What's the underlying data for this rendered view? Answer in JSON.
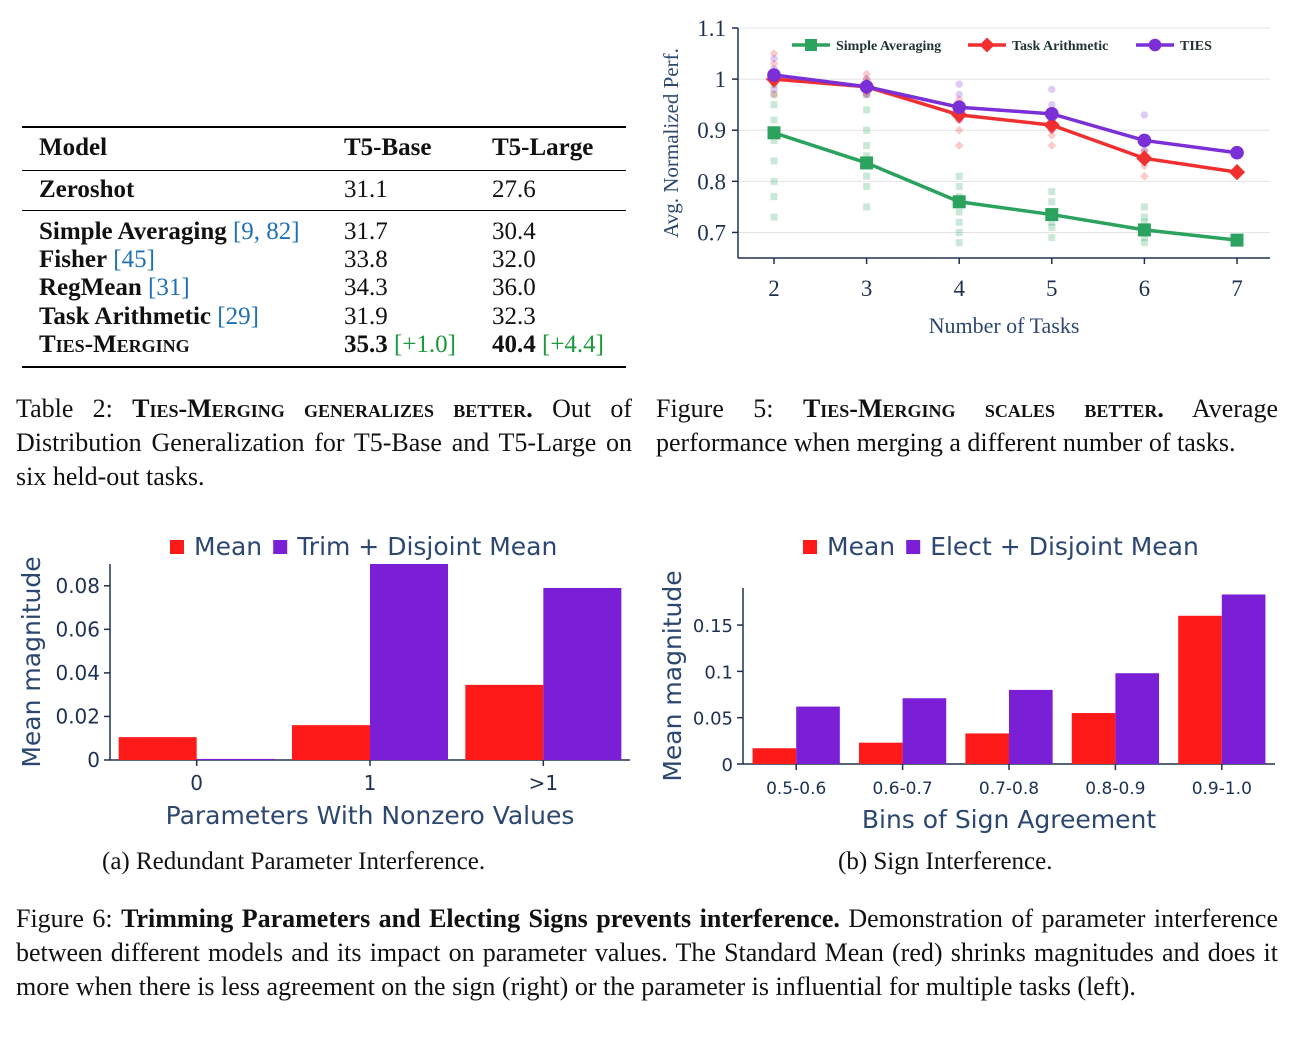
{
  "table": {
    "headers": [
      "Model",
      "T5-Base",
      "T5-Large"
    ],
    "rows": [
      {
        "model": "Zeroshot",
        "cite": "",
        "base": "31.1",
        "large": "27.6",
        "group": 1
      },
      {
        "model": "Simple Averaging",
        "cite": "[9, 82]",
        "base": "31.7",
        "large": "30.4",
        "group": 2
      },
      {
        "model": "Fisher",
        "cite": "[45]",
        "base": "33.8",
        "large": "32.0",
        "group": 2
      },
      {
        "model": "RegMean",
        "cite": "[31]",
        "base": "34.3",
        "large": "36.0",
        "group": 2
      },
      {
        "model": "Task Arithmetic",
        "cite": "[29]",
        "base": "31.9",
        "large": "32.3",
        "group": 2
      },
      {
        "model": "Ties-Merging",
        "cite": "",
        "base": "35.3",
        "base_gain": "[+1.0]",
        "large": "40.4",
        "large_gain": "[+4.4]",
        "group": 2,
        "smallcaps": true
      }
    ],
    "caption_label": "Table 2:",
    "caption_bold": "Ties-Merging generalizes better.",
    "caption_text": "Out of Distribution Generalization for T5-Base and T5-Large on six held-out tasks."
  },
  "fig5": {
    "caption_label": "Figure 5:",
    "caption_bold": "Ties-Merging scales better.",
    "caption_text": "Average performance when merging a different number of tasks."
  },
  "fig6": {
    "caption_label": "Figure 6:",
    "caption_bold": "Trimming Parameters and Electing Signs prevents interference.",
    "caption_text": "Demonstration of parameter interference between different models and its impact on parameter values. The Standard Mean (red) shrinks magnitudes and does it more when there is less agreement on the sign (right) or the parameter is influential for multiple tasks (left).",
    "sub_a": "(a)  Redundant Parameter Interference.",
    "sub_b": "(b)  Sign Interference."
  },
  "chart_data": [
    {
      "type": "line",
      "xlabel": "Number of Tasks",
      "ylabel": "Avg. Normalized Perf.",
      "x": [
        2,
        3,
        4,
        5,
        6,
        7
      ],
      "xticks": [
        "2",
        "3",
        "4",
        "5",
        "6",
        "7"
      ],
      "yticks": [
        "0.7",
        "0.8",
        "0.9",
        "1",
        "1.1"
      ],
      "ylim": [
        0.65,
        1.1
      ],
      "grid": true,
      "legend": "top",
      "series": [
        {
          "name": "Simple Averaging",
          "values": [
            0.895,
            0.836,
            0.76,
            0.735,
            0.705,
            0.685
          ],
          "color": "#2ca25f",
          "marker": "square",
          "scatter": [
            [
              0.73,
              0.77,
              0.8,
              0.84,
              0.88,
              0.92,
              0.95,
              0.97,
              0.99
            ],
            [
              0.75,
              0.79,
              0.81,
              0.85,
              0.87,
              0.9,
              0.94,
              0.97
            ],
            [
              0.68,
              0.7,
              0.72,
              0.74,
              0.77,
              0.79,
              0.81
            ],
            [
              0.69,
              0.71,
              0.72,
              0.74,
              0.76,
              0.78
            ],
            [
              0.68,
              0.69,
              0.71,
              0.72,
              0.73,
              0.75
            ],
            []
          ]
        },
        {
          "name": "Task Arithmetic",
          "values": [
            1.0,
            0.985,
            0.93,
            0.91,
            0.845,
            0.818
          ],
          "color": "#f03030",
          "marker": "diamond",
          "scatter": [
            [
              0.97,
              0.99,
              1.01,
              1.03,
              1.05
            ],
            [
              0.97,
              0.99,
              1.0,
              1.01
            ],
            [
              0.87,
              0.9,
              0.92,
              0.94,
              0.96
            ],
            [
              0.87,
              0.89,
              0.9,
              0.92
            ],
            [
              0.81,
              0.83,
              0.86
            ],
            []
          ]
        },
        {
          "name": "TIES",
          "values": [
            1.008,
            0.985,
            0.945,
            0.932,
            0.88,
            0.856
          ],
          "color": "#7b2fd6",
          "marker": "circle",
          "scatter": [
            [
              0.98,
              1.0,
              1.02,
              1.04
            ],
            [
              0.97,
              0.99,
              1.0
            ],
            [
              0.92,
              0.95,
              0.97,
              0.99
            ],
            [
              0.9,
              0.93,
              0.95,
              0.98
            ],
            [
              0.86,
              0.88,
              0.93
            ],
            []
          ]
        }
      ]
    },
    {
      "type": "bar",
      "xlabel": "Parameters With Nonzero Values",
      "ylabel": "Mean magnitude",
      "categories": [
        "0",
        "1",
        ">1"
      ],
      "yticks": [
        "0",
        "0.02",
        "0.04",
        "0.06",
        "0.08"
      ],
      "ylim": [
        0,
        0.09
      ],
      "legend": "top",
      "series": [
        {
          "name": "Mean",
          "values": [
            0.0105,
            0.016,
            0.0345
          ],
          "color": "#ff1a1a"
        },
        {
          "name": "Trim + Disjoint Mean",
          "values": [
            0.0005,
            0.09,
            0.079
          ],
          "color": "#7b1fd6"
        }
      ]
    },
    {
      "type": "bar",
      "xlabel": "Bins of Sign Agreement",
      "ylabel": "Mean magnitude",
      "categories": [
        "0.5-0.6",
        "0.6-0.7",
        "0.7-0.8",
        "0.8-0.9",
        "0.9-1.0"
      ],
      "yticks": [
        "0",
        "0.05",
        "0.1",
        "0.15"
      ],
      "ylim": [
        0,
        0.19
      ],
      "legend": "top",
      "series": [
        {
          "name": "Mean",
          "values": [
            0.017,
            0.023,
            0.033,
            0.055,
            0.16
          ],
          "color": "#ff1a1a"
        },
        {
          "name": "Elect + Disjoint Mean",
          "values": [
            0.062,
            0.071,
            0.08,
            0.098,
            0.183
          ],
          "color": "#7b1fd6"
        }
      ]
    }
  ]
}
